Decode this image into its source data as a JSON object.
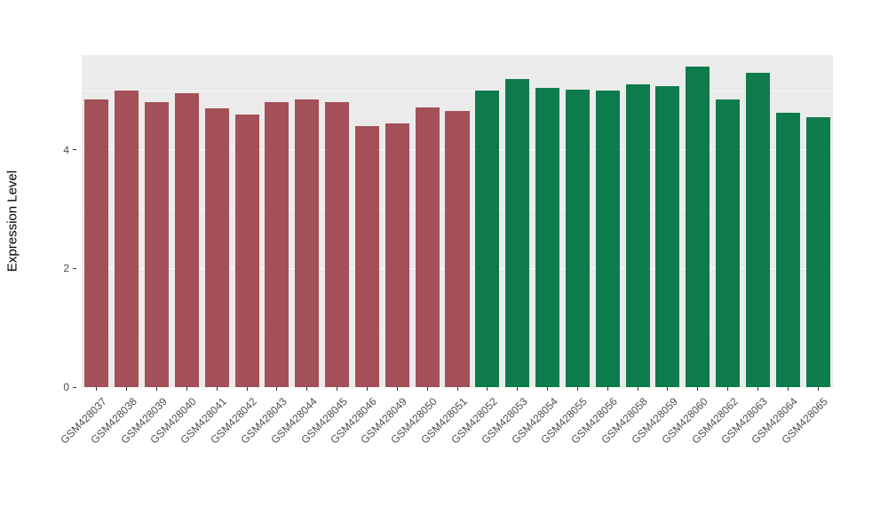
{
  "figure": {
    "background": "#FFFFFF",
    "panel_background": "#EBEBEB",
    "gridline_color": "#FFFFFF"
  },
  "chart_data": {
    "type": "bar",
    "title": "",
    "xlabel": "",
    "ylabel": "Expression Level",
    "ylim": [
      0,
      5.6
    ],
    "yticks_major": [
      0,
      2,
      4
    ],
    "yticks_minor": [
      1,
      3,
      5
    ],
    "grid": true,
    "legend": "none",
    "group_colors": {
      "group1": "#A35059",
      "group2": "#0E7B4C"
    },
    "bars": [
      {
        "label": "GSM428037",
        "value": 4.85,
        "group": "group1"
      },
      {
        "label": "GSM428038",
        "value": 5.0,
        "group": "group1"
      },
      {
        "label": "GSM428039",
        "value": 4.8,
        "group": "group1"
      },
      {
        "label": "GSM428040",
        "value": 4.95,
        "group": "group1"
      },
      {
        "label": "GSM428041",
        "value": 4.7,
        "group": "group1"
      },
      {
        "label": "GSM428042",
        "value": 4.6,
        "group": "group1"
      },
      {
        "label": "GSM428043",
        "value": 4.8,
        "group": "group1"
      },
      {
        "label": "GSM428044",
        "value": 4.85,
        "group": "group1"
      },
      {
        "label": "GSM428045",
        "value": 4.8,
        "group": "group1"
      },
      {
        "label": "GSM428046",
        "value": 4.4,
        "group": "group1"
      },
      {
        "label": "GSM428049",
        "value": 4.45,
        "group": "group1"
      },
      {
        "label": "GSM428050",
        "value": 4.72,
        "group": "group1"
      },
      {
        "label": "GSM428051",
        "value": 4.65,
        "group": "group1"
      },
      {
        "label": "GSM428052",
        "value": 5.0,
        "group": "group2"
      },
      {
        "label": "GSM428053",
        "value": 5.2,
        "group": "group2"
      },
      {
        "label": "GSM428054",
        "value": 5.05,
        "group": "group2"
      },
      {
        "label": "GSM428055",
        "value": 5.02,
        "group": "group2"
      },
      {
        "label": "GSM428056",
        "value": 5.0,
        "group": "group2"
      },
      {
        "label": "GSM428058",
        "value": 5.1,
        "group": "group2"
      },
      {
        "label": "GSM428059",
        "value": 5.08,
        "group": "group2"
      },
      {
        "label": "GSM428060",
        "value": 5.4,
        "group": "group2"
      },
      {
        "label": "GSM428062",
        "value": 4.85,
        "group": "group2"
      },
      {
        "label": "GSM428063",
        "value": 5.3,
        "group": "group2"
      },
      {
        "label": "GSM428064",
        "value": 4.62,
        "group": "group2"
      },
      {
        "label": "GSM428065",
        "value": 4.55,
        "group": "group2"
      }
    ]
  }
}
